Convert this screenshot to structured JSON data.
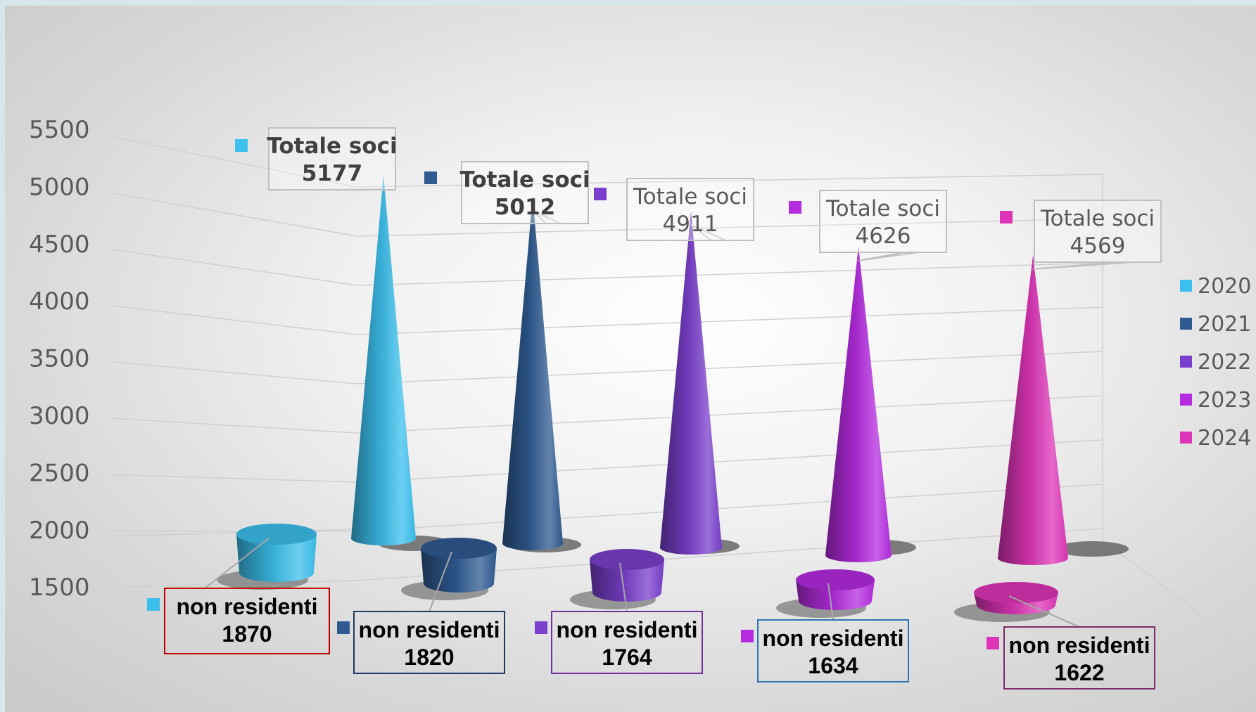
{
  "chart_data": {
    "type": "bar",
    "shape": "3d-cone",
    "categories": [
      "2020",
      "2021",
      "2022",
      "2023",
      "2024"
    ],
    "series": [
      {
        "label_prefix": "Totale soci",
        "values": [
          5177,
          5012,
          4911,
          4626,
          4569
        ]
      },
      {
        "label_prefix": "non residenti",
        "values": [
          1870,
          1820,
          1764,
          1634,
          1622
        ]
      }
    ],
    "yticks": [
      "5500",
      "5000",
      "4500",
      "4000",
      "3500",
      "3000",
      "2500",
      "2000",
      "1500"
    ],
    "ylim": [
      1500,
      5500
    ],
    "grid": true,
    "legend": {
      "position": "right",
      "entries": [
        "2020",
        "2021",
        "2022",
        "2023",
        "2024"
      ]
    },
    "colors": [
      "#3cc0ee",
      "#2f5b92",
      "#7a3fcc",
      "#b52be0",
      "#de35b8"
    ],
    "label_emphasis": [
      "bold",
      "bold",
      "normal",
      "normal",
      "normal"
    ],
    "box_colors": [
      "#c00000",
      "#1f3864",
      "#7030a0",
      "#2e75b6",
      "#7b2c69"
    ]
  }
}
